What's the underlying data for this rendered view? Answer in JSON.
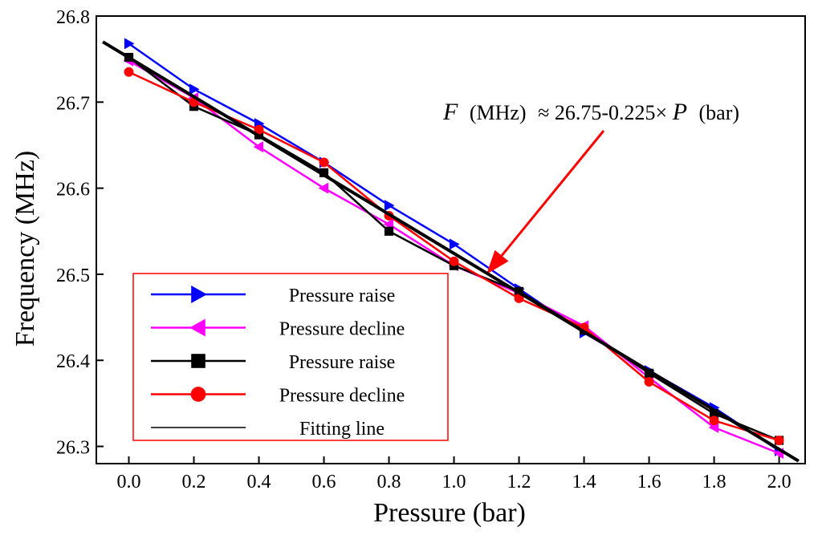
{
  "chart_data": {
    "type": "line",
    "xlabel": "Pressure (bar)",
    "ylabel": "Frequency (MHz)",
    "xlim": [
      -0.1,
      2.08
    ],
    "ylim": [
      26.28,
      26.8
    ],
    "x_ticks": [
      0.0,
      0.2,
      0.4,
      0.6,
      0.8,
      1.0,
      1.2,
      1.4,
      1.6,
      1.8,
      2.0
    ],
    "x_tick_labels": [
      "0.0",
      "0.2",
      "0.4",
      "0.6",
      "0.8",
      "1.0",
      "1.2",
      "1.4",
      "1.6",
      "1.8",
      "2.0"
    ],
    "y_ticks": [
      26.3,
      26.4,
      26.5,
      26.6,
      26.7,
      26.8
    ],
    "y_tick_labels": [
      "26.3",
      "26.4",
      "26.5",
      "26.6",
      "26.7",
      "26.8"
    ],
    "grid": false,
    "legend_position": "bottom-left",
    "x": [
      0.0,
      0.2,
      0.4,
      0.6,
      0.8,
      1.0,
      1.2,
      1.4,
      1.6,
      1.8,
      2.0
    ],
    "series": [
      {
        "name": "Pressure raise",
        "marker": "triangle-right",
        "color": "#0000ff",
        "values": [
          26.768,
          26.715,
          26.675,
          26.63,
          26.58,
          26.535,
          26.483,
          26.432,
          26.388,
          26.345,
          26.295
        ]
      },
      {
        "name": "Pressure decline",
        "marker": "triangle-left",
        "color": "#ff00ff",
        "values": [
          26.748,
          26.705,
          26.648,
          26.6,
          26.558,
          26.51,
          26.478,
          26.44,
          26.38,
          26.322,
          26.292
        ]
      },
      {
        "name": "Pressure raise",
        "marker": "square",
        "color": "#000000",
        "values": [
          26.752,
          26.695,
          26.662,
          26.618,
          26.55,
          26.51,
          26.48,
          26.435,
          26.385,
          26.338,
          26.307
        ]
      },
      {
        "name": "Pressure decline",
        "marker": "circle",
        "color": "#ff0000",
        "values": [
          26.735,
          26.7,
          26.668,
          26.63,
          26.568,
          26.515,
          26.472,
          26.438,
          26.375,
          26.33,
          26.307
        ]
      }
    ],
    "fit_line": {
      "name": "Fitting line",
      "color": "#000000",
      "x": [
        -0.08,
        2.06
      ],
      "y": [
        26.77,
        26.283
      ]
    },
    "annotation": {
      "F": "F",
      "mhz": "(MHz)",
      "body": "≈ 26.75-0.225×",
      "P": "P",
      "bar": "(bar)",
      "color": "#ff0000",
      "arrow_to": [
        1.1,
        26.5
      ]
    }
  }
}
